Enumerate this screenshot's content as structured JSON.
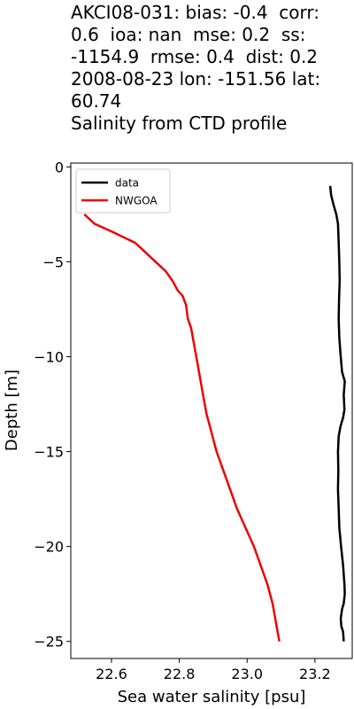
{
  "title_lines": [
    "AKCI08-031: bias: -0.4  corr:",
    "0.6  ioa: nan  mse: 0.2  ss:",
    "-1154.9  rmse: 0.4  dist: 0.2",
    "",
    "2008-08-23 lon: -151.56 lat:",
    "60.74",
    "Salinity from CTD profile"
  ],
  "chart_data": {
    "type": "line",
    "xlabel": "Sea water salinity [psu]",
    "ylabel": "Depth [m]",
    "xlim": [
      22.48,
      23.31
    ],
    "ylim": [
      -25.9,
      0.2
    ],
    "xticks": [
      22.6,
      22.8,
      23.0,
      23.2
    ],
    "xtick_labels": [
      "22.6",
      "22.8",
      "23.0",
      "23.2"
    ],
    "yticks": [
      0,
      -5,
      -10,
      -15,
      -20,
      -25
    ],
    "ytick_labels": [
      "0",
      "−5",
      "−10",
      "−15",
      "−20",
      "−25"
    ],
    "grid": false,
    "legend_position": "top-left",
    "series": [
      {
        "name": "data",
        "color": "#000000",
        "points": [
          [
            23.245,
            -1.0
          ],
          [
            23.248,
            -1.5
          ],
          [
            23.255,
            -2.0
          ],
          [
            23.263,
            -2.5
          ],
          [
            23.268,
            -3.0
          ],
          [
            23.27,
            -4.0
          ],
          [
            23.272,
            -5.0
          ],
          [
            23.273,
            -6.0
          ],
          [
            23.271,
            -7.0
          ],
          [
            23.27,
            -8.0
          ],
          [
            23.272,
            -9.0
          ],
          [
            23.276,
            -10.0
          ],
          [
            23.28,
            -10.8
          ],
          [
            23.288,
            -11.3
          ],
          [
            23.285,
            -12.0
          ],
          [
            23.287,
            -12.8
          ],
          [
            23.283,
            -13.2
          ],
          [
            23.275,
            -13.7
          ],
          [
            23.27,
            -14.2
          ],
          [
            23.268,
            -15.0
          ],
          [
            23.269,
            -16.0
          ],
          [
            23.268,
            -17.0
          ],
          [
            23.27,
            -18.0
          ],
          [
            23.272,
            -19.0
          ],
          [
            23.277,
            -20.0
          ],
          [
            23.283,
            -21.0
          ],
          [
            23.287,
            -22.0
          ],
          [
            23.288,
            -22.5
          ],
          [
            23.285,
            -23.0
          ],
          [
            23.28,
            -23.3
          ],
          [
            23.276,
            -23.8
          ],
          [
            23.278,
            -24.2
          ],
          [
            23.283,
            -24.5
          ],
          [
            23.285,
            -25.0
          ]
        ]
      },
      {
        "name": "NWGOA",
        "color": "#ee0000",
        "points": [
          [
            22.52,
            -2.5
          ],
          [
            22.55,
            -3.0
          ],
          [
            22.6,
            -3.4
          ],
          [
            22.67,
            -4.0
          ],
          [
            22.7,
            -4.5
          ],
          [
            22.73,
            -5.0
          ],
          [
            22.76,
            -5.5
          ],
          [
            22.78,
            -6.0
          ],
          [
            22.795,
            -6.5
          ],
          [
            22.81,
            -6.8
          ],
          [
            22.82,
            -7.3
          ],
          [
            22.825,
            -8.0
          ],
          [
            22.835,
            -8.5
          ],
          [
            22.84,
            -9.0
          ],
          [
            22.85,
            -10.0
          ],
          [
            22.86,
            -11.0
          ],
          [
            22.87,
            -12.0
          ],
          [
            22.88,
            -13.0
          ],
          [
            22.895,
            -14.0
          ],
          [
            22.91,
            -15.0
          ],
          [
            22.93,
            -16.0
          ],
          [
            22.95,
            -17.0
          ],
          [
            22.97,
            -18.0
          ],
          [
            22.995,
            -19.0
          ],
          [
            23.02,
            -20.0
          ],
          [
            23.04,
            -21.0
          ],
          [
            23.06,
            -22.0
          ],
          [
            23.075,
            -23.0
          ],
          [
            23.085,
            -24.0
          ],
          [
            23.095,
            -25.0
          ]
        ]
      }
    ]
  }
}
